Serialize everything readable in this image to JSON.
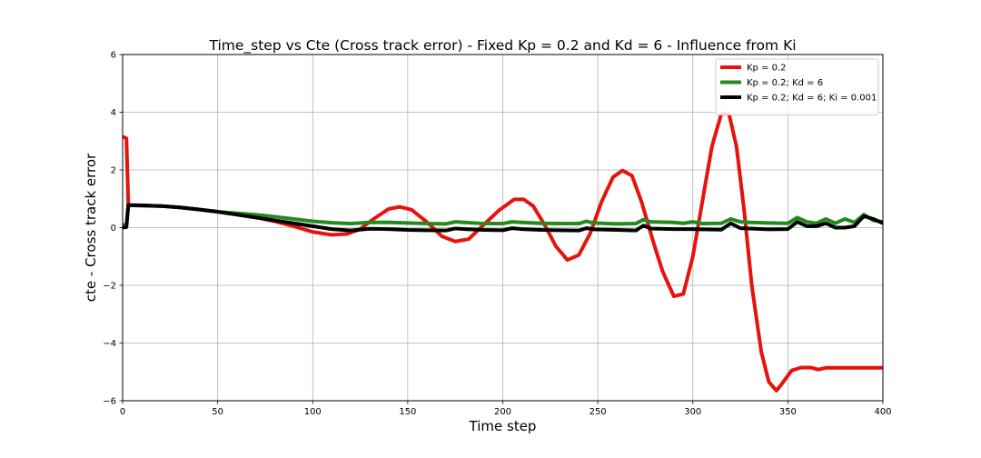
{
  "chart_data": {
    "type": "line",
    "title": "Time_step vs Cte (Cross track error) - Fixed Kp = 0.2 and Kd = 6 - Influence from Ki",
    "xlabel": "Time step",
    "ylabel": "cte - Cross track error",
    "xlim": [
      0,
      400
    ],
    "ylim": [
      -6,
      6
    ],
    "xticks": [
      0,
      50,
      100,
      150,
      200,
      250,
      300,
      350,
      400
    ],
    "yticks": [
      -6,
      -4,
      -2,
      0,
      2,
      4,
      6
    ],
    "xtick_labels": [
      "0",
      "50",
      "100",
      "150",
      "200",
      "250",
      "300",
      "350",
      "400"
    ],
    "ytick_labels": [
      "−6",
      "−4",
      "−2",
      "0",
      "2",
      "4",
      "6"
    ],
    "grid": true,
    "legend_position": "top-right",
    "series": [
      {
        "name": "Kp = 0.2",
        "color": "#e8120c",
        "points": [
          [
            0,
            3.15
          ],
          [
            2,
            3.1
          ],
          [
            3,
            0.78
          ],
          [
            10,
            0.76
          ],
          [
            20,
            0.75
          ],
          [
            30,
            0.7
          ],
          [
            40,
            0.63
          ],
          [
            50,
            0.55
          ],
          [
            60,
            0.46
          ],
          [
            70,
            0.36
          ],
          [
            80,
            0.22
          ],
          [
            90,
            0.05
          ],
          [
            100,
            -0.15
          ],
          [
            110,
            -0.25
          ],
          [
            118,
            -0.22
          ],
          [
            125,
            -0.05
          ],
          [
            132,
            0.3
          ],
          [
            140,
            0.65
          ],
          [
            146,
            0.72
          ],
          [
            152,
            0.62
          ],
          [
            160,
            0.2
          ],
          [
            168,
            -0.3
          ],
          [
            175,
            -0.48
          ],
          [
            182,
            -0.4
          ],
          [
            190,
            0.1
          ],
          [
            198,
            0.6
          ],
          [
            206,
            0.98
          ],
          [
            211,
            0.98
          ],
          [
            216,
            0.75
          ],
          [
            222,
            0.1
          ],
          [
            228,
            -0.65
          ],
          [
            234,
            -1.12
          ],
          [
            240,
            -0.95
          ],
          [
            246,
            -0.2
          ],
          [
            252,
            0.9
          ],
          [
            258,
            1.75
          ],
          [
            263,
            1.98
          ],
          [
            268,
            1.8
          ],
          [
            273,
            0.9
          ],
          [
            279,
            -0.45
          ],
          [
            284,
            -1.5
          ],
          [
            290,
            -2.38
          ],
          [
            295,
            -2.3
          ],
          [
            300,
            -1.0
          ],
          [
            305,
            0.9
          ],
          [
            310,
            2.8
          ],
          [
            315,
            3.95
          ],
          [
            319,
            3.95
          ],
          [
            323,
            2.8
          ],
          [
            327,
            0.6
          ],
          [
            331,
            -2.0
          ],
          [
            336,
            -4.3
          ],
          [
            340,
            -5.35
          ],
          [
            344,
            -5.65
          ],
          [
            347,
            -5.4
          ],
          [
            352,
            -4.95
          ],
          [
            357,
            -4.85
          ],
          [
            362,
            -4.85
          ],
          [
            366,
            -4.92
          ],
          [
            370,
            -4.86
          ],
          [
            380,
            -4.86
          ],
          [
            400,
            -4.86
          ]
        ]
      },
      {
        "name": "Kp = 0.2; Kd = 6",
        "color": "#238a1f",
        "points": [
          [
            0,
            0.1
          ],
          [
            2,
            0.08
          ],
          [
            3,
            0.78
          ],
          [
            10,
            0.77
          ],
          [
            20,
            0.75
          ],
          [
            30,
            0.7
          ],
          [
            40,
            0.63
          ],
          [
            50,
            0.55
          ],
          [
            60,
            0.5
          ],
          [
            70,
            0.45
          ],
          [
            80,
            0.38
          ],
          [
            90,
            0.3
          ],
          [
            100,
            0.22
          ],
          [
            110,
            0.17
          ],
          [
            120,
            0.14
          ],
          [
            130,
            0.18
          ],
          [
            140,
            0.18
          ],
          [
            150,
            0.16
          ],
          [
            160,
            0.14
          ],
          [
            170,
            0.13
          ],
          [
            175,
            0.2
          ],
          [
            180,
            0.18
          ],
          [
            190,
            0.14
          ],
          [
            200,
            0.14
          ],
          [
            205,
            0.2
          ],
          [
            210,
            0.18
          ],
          [
            220,
            0.15
          ],
          [
            230,
            0.14
          ],
          [
            240,
            0.14
          ],
          [
            244,
            0.22
          ],
          [
            248,
            0.16
          ],
          [
            260,
            0.13
          ],
          [
            270,
            0.14
          ],
          [
            274,
            0.28
          ],
          [
            278,
            0.2
          ],
          [
            290,
            0.18
          ],
          [
            295,
            0.15
          ],
          [
            300,
            0.2
          ],
          [
            305,
            0.14
          ],
          [
            315,
            0.15
          ],
          [
            320,
            0.3
          ],
          [
            325,
            0.2
          ],
          [
            330,
            0.18
          ],
          [
            340,
            0.16
          ],
          [
            350,
            0.15
          ],
          [
            355,
            0.35
          ],
          [
            360,
            0.2
          ],
          [
            365,
            0.15
          ],
          [
            370,
            0.3
          ],
          [
            375,
            0.15
          ],
          [
            380,
            0.3
          ],
          [
            385,
            0.18
          ],
          [
            390,
            0.45
          ],
          [
            395,
            0.25
          ],
          [
            400,
            0.2
          ]
        ]
      },
      {
        "name": "Kp = 0.2; Kd = 6; Ki = 0.001",
        "color": "#000000",
        "points": [
          [
            0,
            0.0
          ],
          [
            2,
            0.02
          ],
          [
            3,
            0.78
          ],
          [
            10,
            0.77
          ],
          [
            20,
            0.75
          ],
          [
            30,
            0.7
          ],
          [
            40,
            0.63
          ],
          [
            50,
            0.55
          ],
          [
            60,
            0.45
          ],
          [
            70,
            0.35
          ],
          [
            80,
            0.25
          ],
          [
            90,
            0.15
          ],
          [
            100,
            0.05
          ],
          [
            110,
            -0.05
          ],
          [
            120,
            -0.1
          ],
          [
            130,
            -0.04
          ],
          [
            140,
            -0.05
          ],
          [
            150,
            -0.08
          ],
          [
            160,
            -0.09
          ],
          [
            170,
            -0.1
          ],
          [
            175,
            -0.03
          ],
          [
            180,
            -0.05
          ],
          [
            190,
            -0.08
          ],
          [
            200,
            -0.09
          ],
          [
            205,
            -0.02
          ],
          [
            210,
            -0.05
          ],
          [
            220,
            -0.08
          ],
          [
            230,
            -0.09
          ],
          [
            240,
            -0.1
          ],
          [
            244,
            -0.02
          ],
          [
            248,
            -0.06
          ],
          [
            260,
            -0.08
          ],
          [
            270,
            -0.1
          ],
          [
            274,
            0.07
          ],
          [
            278,
            -0.03
          ],
          [
            290,
            -0.05
          ],
          [
            300,
            -0.05
          ],
          [
            305,
            -0.06
          ],
          [
            315,
            -0.07
          ],
          [
            320,
            0.15
          ],
          [
            325,
            -0.02
          ],
          [
            330,
            -0.03
          ],
          [
            340,
            -0.06
          ],
          [
            350,
            -0.05
          ],
          [
            355,
            0.2
          ],
          [
            360,
            0.05
          ],
          [
            365,
            0.05
          ],
          [
            370,
            0.15
          ],
          [
            375,
            0.0
          ],
          [
            380,
            0.0
          ],
          [
            385,
            0.05
          ],
          [
            390,
            0.4
          ],
          [
            395,
            0.3
          ],
          [
            400,
            0.15
          ]
        ]
      }
    ]
  }
}
